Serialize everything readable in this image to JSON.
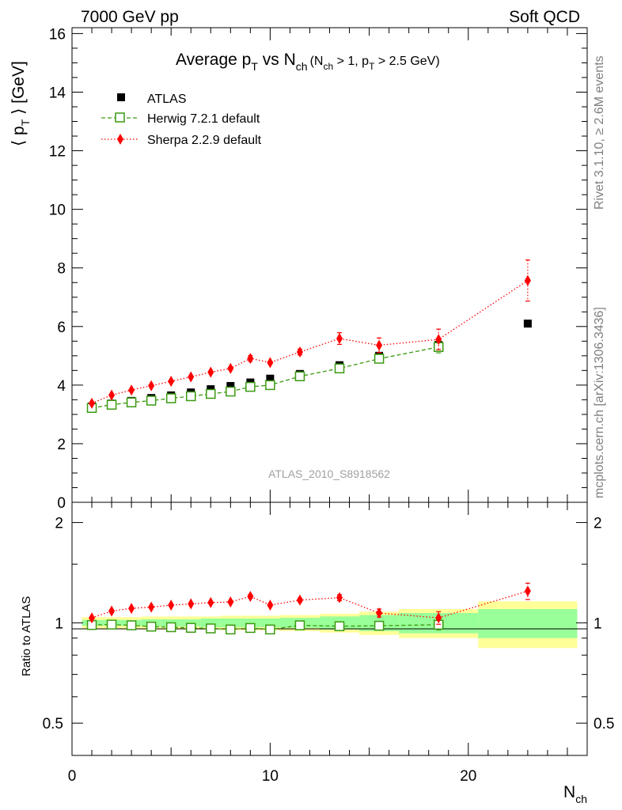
{
  "header": {
    "left": "7000 GeV pp",
    "right": "Soft QCD"
  },
  "side_text": {
    "rivet": "Rivet 3.1.10, ≥ 2.6M events",
    "mcplots": "mcplots.cern.ch [arXiv:1306.3436]"
  },
  "watermark": "ATLAS_2010_S8918562",
  "chart_data": [
    {
      "type": "scatter",
      "panel": "main",
      "title": "Average p_T vs N_ch (N_ch > 1, p_T > 2.5 GeV)",
      "title_parts": {
        "main_a": "Average p",
        "sub_a": "T",
        "main_b": " vs N",
        "sub_b": "ch",
        "cond_a": "(N",
        "cond_sub_a": "ch",
        "cond_b": " > 1, p",
        "cond_sub_b": "T",
        "cond_c": " > 2.5 GeV)"
      },
      "ylabel": "⟨ p_T ⟩ [GeV]",
      "ylabel_parts": {
        "open": "⟨ p",
        "sub": "T",
        "close": " ⟩  [GeV]"
      },
      "xlabel": "N_ch",
      "xlabel_parts": {
        "main": "N",
        "sub": "ch"
      },
      "xlim": [
        0,
        26
      ],
      "ylim": [
        0,
        16.2
      ],
      "yticks": [
        0,
        2,
        4,
        6,
        8,
        10,
        12,
        14,
        16
      ],
      "legend_position": "top-left",
      "series": [
        {
          "name": "ATLAS",
          "color": "#000000",
          "marker": "filled-square",
          "line": "none",
          "points": [
            [
              1,
              3.27
            ],
            [
              2,
              3.37
            ],
            [
              3,
              3.46
            ],
            [
              4,
              3.56
            ],
            [
              5,
              3.65
            ],
            [
              6,
              3.75
            ],
            [
              7,
              3.86
            ],
            [
              8,
              3.97
            ],
            [
              9,
              4.09
            ],
            [
              10,
              4.22
            ],
            [
              11.5,
              4.38
            ],
            [
              13.5,
              4.68
            ],
            [
              15.5,
              5.0
            ],
            [
              18.5,
              5.37
            ],
            [
              23,
              6.1
            ]
          ]
        },
        {
          "name": "Herwig 7.2.1 default",
          "color": "#3a9a10",
          "marker": "open-square",
          "line": "dashed",
          "points": [
            [
              1,
              3.22
            ],
            [
              2,
              3.33
            ],
            [
              3,
              3.41
            ],
            [
              4,
              3.47
            ],
            [
              5,
              3.55
            ],
            [
              6,
              3.62
            ],
            [
              7,
              3.7
            ],
            [
              8,
              3.78
            ],
            [
              9,
              3.94
            ],
            [
              10,
              4.0
            ],
            [
              11.5,
              4.3
            ],
            [
              13.5,
              4.57
            ],
            [
              15.5,
              4.9
            ],
            [
              18.5,
              5.3
            ]
          ],
          "yerr": [
            0,
            0,
            0,
            0,
            0,
            0,
            0,
            0,
            0,
            0,
            0,
            0,
            0.1,
            0.2
          ]
        },
        {
          "name": "Sherpa 2.2.9 default",
          "color": "#ff0000",
          "marker": "filled-diamond",
          "line": "dotted",
          "points": [
            [
              1,
              3.38
            ],
            [
              2,
              3.66
            ],
            [
              3,
              3.83
            ],
            [
              4,
              3.98
            ],
            [
              5,
              4.13
            ],
            [
              6,
              4.28
            ],
            [
              7,
              4.44
            ],
            [
              8,
              4.57
            ],
            [
              9,
              4.91
            ],
            [
              10,
              4.77
            ],
            [
              11.5,
              5.13
            ],
            [
              13.5,
              5.59
            ],
            [
              15.5,
              5.36
            ],
            [
              18.5,
              5.56
            ],
            [
              23,
              7.57
            ]
          ],
          "yerr": [
            0,
            0,
            0,
            0,
            0,
            0,
            0,
            0,
            0.1,
            0,
            0.1,
            0.2,
            0.25,
            0.35,
            0.7
          ]
        }
      ]
    },
    {
      "type": "scatter",
      "panel": "ratio",
      "ylabel": "Ratio to ATLAS",
      "xlim": [
        0,
        26
      ],
      "ylim": [
        0.4,
        2.3
      ],
      "log_y": true,
      "yticks": [
        0.5,
        1,
        2
      ],
      "xticks": [
        0,
        10,
        20
      ],
      "bands": {
        "edges": [
          0.5,
          1.5,
          2.5,
          3.5,
          4.5,
          5.5,
          6.5,
          7.5,
          8.5,
          9.5,
          10.5,
          12.5,
          14.5,
          16.5,
          20.5,
          25.5
        ],
        "inner": [
          [
            0.98,
            1.02
          ],
          [
            0.98,
            1.02
          ],
          [
            0.98,
            1.02
          ],
          [
            0.975,
            1.025
          ],
          [
            0.975,
            1.025
          ],
          [
            0.975,
            1.025
          ],
          [
            0.97,
            1.03
          ],
          [
            0.97,
            1.03
          ],
          [
            0.97,
            1.03
          ],
          [
            0.97,
            1.03
          ],
          [
            0.965,
            1.035
          ],
          [
            0.955,
            1.045
          ],
          [
            0.945,
            1.055
          ],
          [
            0.93,
            1.07
          ],
          [
            0.9,
            1.1
          ]
        ],
        "outer": [
          [
            0.96,
            1.04
          ],
          [
            0.96,
            1.04
          ],
          [
            0.96,
            1.04
          ],
          [
            0.955,
            1.045
          ],
          [
            0.955,
            1.045
          ],
          [
            0.955,
            1.045
          ],
          [
            0.955,
            1.045
          ],
          [
            0.95,
            1.05
          ],
          [
            0.95,
            1.05
          ],
          [
            0.95,
            1.05
          ],
          [
            0.945,
            1.055
          ],
          [
            0.935,
            1.065
          ],
          [
            0.92,
            1.08
          ],
          [
            0.9,
            1.1
          ],
          [
            0.84,
            1.16
          ]
        ],
        "inner_color": "#99ff99",
        "outer_color": "#ffff99"
      },
      "series": [
        {
          "name": "Herwig 7.2.1 default",
          "color": "#3a9a10",
          "marker": "open-square",
          "line": "dashed",
          "points": [
            [
              1,
              0.985
            ],
            [
              2,
              0.988
            ],
            [
              3,
              0.983
            ],
            [
              4,
              0.974
            ],
            [
              5,
              0.97
            ],
            [
              6,
              0.966
            ],
            [
              7,
              0.962
            ],
            [
              8,
              0.955
            ],
            [
              9,
              0.965
            ],
            [
              10,
              0.955
            ],
            [
              11.5,
              0.983
            ],
            [
              13.5,
              0.977
            ],
            [
              15.5,
              0.98
            ],
            [
              18.5,
              0.987
            ]
          ],
          "yerr": [
            0,
            0,
            0,
            0,
            0,
            0,
            0,
            0,
            0,
            0,
            0,
            0,
            0.015,
            0.035
          ]
        },
        {
          "name": "Sherpa 2.2.9 default",
          "color": "#ff0000",
          "marker": "filled-diamond",
          "line": "dotted",
          "points": [
            [
              1,
              1.035
            ],
            [
              2,
              1.085
            ],
            [
              3,
              1.105
            ],
            [
              4,
              1.115
            ],
            [
              5,
              1.13
            ],
            [
              6,
              1.14
            ],
            [
              7,
              1.15
            ],
            [
              8,
              1.155
            ],
            [
              9,
              1.2
            ],
            [
              10,
              1.13
            ],
            [
              11.5,
              1.17
            ],
            [
              13.5,
              1.19
            ],
            [
              15.5,
              1.07
            ],
            [
              18.5,
              1.035
            ],
            [
              23,
              1.245
            ]
          ],
          "yerr": [
            0,
            0,
            0,
            0,
            0,
            0,
            0,
            0,
            0.015,
            0,
            0.015,
            0.025,
            0.03,
            0.045,
            0.07
          ]
        }
      ]
    }
  ]
}
